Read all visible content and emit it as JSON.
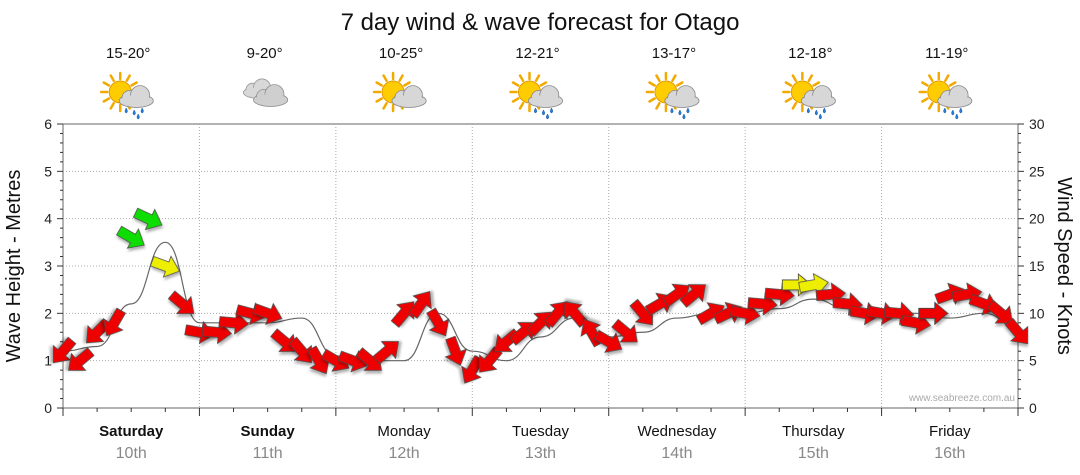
{
  "chart_data": {
    "type": "line",
    "title": "7 day wind & wave forecast for Otago",
    "ylabel_left": "Wave Height - Metres",
    "ylabel_right": "Wind Speed - Knots",
    "ylim_left": [
      0,
      6
    ],
    "ylim_right": [
      0,
      30
    ],
    "yticks_left": [
      "0",
      "1",
      "2",
      "3",
      "4",
      "5",
      "6"
    ],
    "yticks_right": [
      "0",
      "5",
      "10",
      "15",
      "20",
      "25",
      "30"
    ],
    "days": [
      {
        "name": "Saturday",
        "date": "10th",
        "bold": true,
        "temp": "15-20°",
        "icon": "sun-cloud-rain-icon"
      },
      {
        "name": "Sunday",
        "date": "11th",
        "bold": true,
        "temp": "9-20°",
        "icon": "cloudy-icon"
      },
      {
        "name": "Monday",
        "date": "12th",
        "bold": false,
        "temp": "10-25°",
        "icon": "partly-cloudy-icon"
      },
      {
        "name": "Tuesday",
        "date": "13th",
        "bold": false,
        "temp": "12-21°",
        "icon": "sun-cloud-rain-icon"
      },
      {
        "name": "Wednesday",
        "date": "14th",
        "bold": false,
        "temp": "13-17°",
        "icon": "sun-cloud-rain-icon"
      },
      {
        "name": "Thursday",
        "date": "15th",
        "bold": false,
        "temp": "12-18°",
        "icon": "sun-cloud-rain-icon"
      },
      {
        "name": "Friday",
        "date": "16th",
        "bold": false,
        "temp": "11-19°",
        "icon": "sun-cloud-rain-icon"
      }
    ],
    "wind_colors": {
      "low": "#ee0000",
      "mid": "#eeee00",
      "high": "#11dd00"
    },
    "series": [
      {
        "name": "Wave Height",
        "axis": "left",
        "hours": [
          0,
          6,
          12,
          18,
          24,
          30,
          36,
          42,
          48,
          54,
          60,
          66,
          72,
          78,
          84,
          90,
          96,
          102,
          108,
          114,
          120,
          126,
          132,
          138,
          144,
          150,
          156,
          162,
          168
        ],
        "values": [
          1.2,
          1.3,
          2.2,
          3.5,
          1.8,
          1.8,
          1.8,
          1.9,
          1.1,
          1.0,
          1.0,
          2.0,
          1.2,
          1.0,
          1.5,
          1.9,
          1.5,
          1.6,
          1.9,
          2.0,
          2.0,
          2.1,
          2.3,
          2.1,
          2.0,
          2.0,
          1.9,
          2.0,
          1.7
        ]
      },
      {
        "name": "Wind Speed",
        "axis": "right",
        "hours": [
          0,
          3,
          6,
          9,
          12,
          15,
          18,
          21,
          24,
          27,
          30,
          33,
          36,
          39,
          42,
          45,
          48,
          51,
          54,
          57,
          60,
          63,
          66,
          69,
          72,
          75,
          78,
          81,
          84,
          87,
          90,
          93,
          96,
          99,
          102,
          105,
          108,
          111,
          114,
          117,
          120,
          123,
          126,
          129,
          132,
          135,
          138,
          141,
          144,
          147,
          150,
          153,
          156,
          159,
          162,
          165,
          168
        ],
        "values": [
          6,
          5,
          8,
          9,
          18,
          20,
          15,
          11,
          8,
          8,
          9,
          10,
          10,
          7,
          6,
          5,
          5,
          5,
          5,
          6,
          10,
          11,
          9,
          6,
          4,
          5,
          7,
          8,
          9,
          10,
          10,
          8,
          7,
          8,
          10,
          11,
          12,
          12,
          10,
          10,
          10,
          11,
          12,
          13,
          13,
          12,
          11,
          10,
          10,
          10,
          9,
          10,
          12,
          12,
          11,
          10,
          8
        ],
        "directions": [
          220,
          230,
          225,
          210,
          120,
          115,
          110,
          130,
          100,
          95,
          95,
          105,
          110,
          130,
          140,
          150,
          120,
          110,
          130,
          50,
          40,
          35,
          150,
          160,
          210,
          220,
          230,
          50,
          45,
          40,
          320,
          330,
          120,
          130,
          140,
          60,
          55,
          50,
          60,
          65,
          100,
          95,
          95,
          90,
          80,
          85,
          95,
          100,
          100,
          95,
          100,
          90,
          70,
          80,
          110,
          130,
          140
        ]
      }
    ],
    "credit": "www.seabreeze.com.au"
  }
}
